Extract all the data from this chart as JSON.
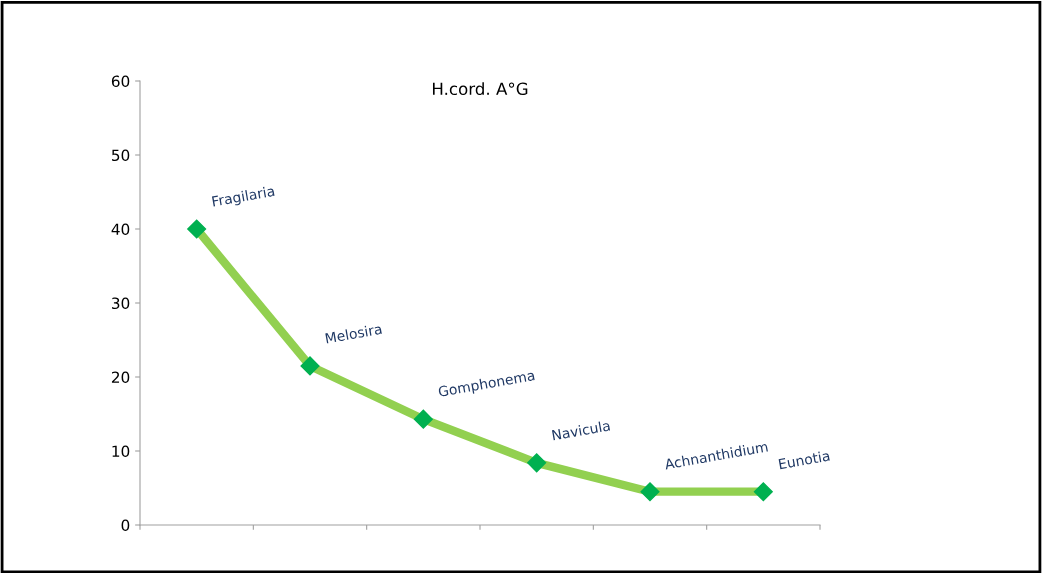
{
  "chart_data": {
    "type": "line",
    "title": "H.cord. A°G",
    "categories": [
      null,
      null,
      null,
      null,
      null,
      null
    ],
    "series": [
      {
        "color": "#92d050",
        "values": [
          40,
          21.5,
          14.3,
          8.4,
          4.5,
          4.5
        ]
      }
    ],
    "annotations": [
      "Fragilaria",
      "Melosira",
      "Gomphonema",
      "Navicula",
      "Achnanthidium",
      "Eunotia"
    ],
    "marker": "diamond",
    "line_style": "solid",
    "ylim": [
      0,
      60
    ],
    "yticks": [
      0,
      10,
      20,
      30,
      40,
      50,
      60
    ],
    "grid": false,
    "legend": false,
    "tick_labels": "y"
  }
}
